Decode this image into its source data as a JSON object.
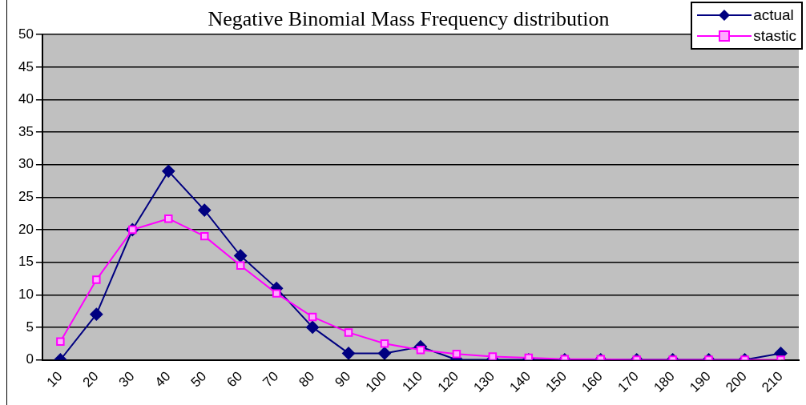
{
  "chart_data": {
    "type": "line",
    "title": "Negative Binomial Mass Frequency distribution",
    "categories": [
      "10",
      "20",
      "30",
      "40",
      "50",
      "60",
      "70",
      "80",
      "90",
      "100",
      "110",
      "120",
      "130",
      "140",
      "150",
      "160",
      "170",
      "180",
      "190",
      "200",
      "210"
    ],
    "series": [
      {
        "name": "actual",
        "color": "#000080",
        "marker": "diamond",
        "values": [
          0,
          7,
          20,
          29,
          23,
          16,
          11,
          5,
          1,
          1,
          2,
          0,
          0,
          0,
          0,
          0,
          0,
          0,
          0,
          0,
          1
        ]
      },
      {
        "name": "stastic",
        "color": "#ff00ff",
        "marker": "square",
        "values": [
          2.8,
          12.3,
          20,
          21.7,
          19,
          14.5,
          10.2,
          6.6,
          4.2,
          2.5,
          1.5,
          0.9,
          0.5,
          0.3,
          0.1,
          0.1,
          0,
          0,
          0,
          0,
          0
        ]
      }
    ],
    "ylim": [
      0,
      50
    ],
    "yticks": [
      0,
      5,
      10,
      15,
      20,
      25,
      30,
      35,
      40,
      45,
      50
    ],
    "grid": "y",
    "legend": "top right",
    "line_style": "solid"
  }
}
